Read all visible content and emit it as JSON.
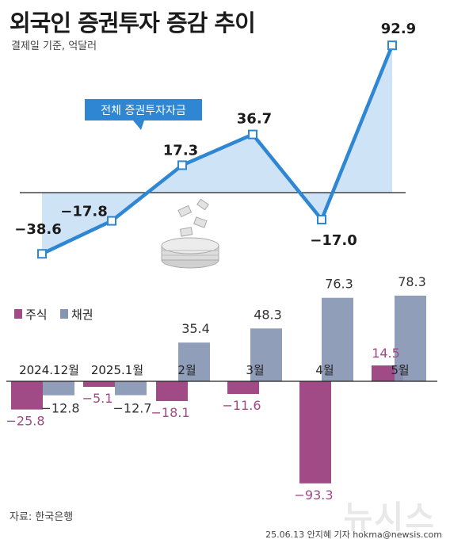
{
  "title": "외국인 증권투자 증감 추이",
  "subtitle": "결제일 기준, 억달러",
  "source": "자료: 한국은행",
  "credit": "25.06.13 안지혜 기자 hokma@newsis.com",
  "watermark": "뉴시스",
  "colors": {
    "total_line": "#2f86d3",
    "total_fill": "#cfe3f6",
    "stocks": "#a04a86",
    "bonds": "#8594b3"
  },
  "chart_data": [
    {
      "type": "line",
      "categories": [
        "2024.12월",
        "2025.1월",
        "2월",
        "3월",
        "4월",
        "5월"
      ],
      "series": [
        {
          "name": "전체 증권투자자금",
          "values": [
            -38.6,
            -17.8,
            17.3,
            36.7,
            -17.0,
            92.9
          ]
        }
      ],
      "value_labels": [
        "−38.6",
        "−17.8",
        "17.3",
        "36.7",
        "−17.0",
        "92.9"
      ],
      "grid": false
    },
    {
      "type": "bar",
      "categories": [
        "2024.12월",
        "2025.1월",
        "2월",
        "3월",
        "4월",
        "5월"
      ],
      "series": [
        {
          "name": "주식",
          "values": [
            -25.8,
            -5.1,
            -18.1,
            -11.6,
            -93.3,
            14.5
          ],
          "labels": [
            "−25.8",
            "−5.1",
            "−18.1",
            "−11.6",
            "−93.3",
            "14.5"
          ]
        },
        {
          "name": "채권",
          "values": [
            -12.8,
            -12.7,
            35.4,
            48.3,
            76.3,
            78.3
          ],
          "labels": [
            "−12.8",
            "−12.7",
            "35.4",
            "48.3",
            "76.3",
            "78.3"
          ]
        }
      ],
      "legend": "left",
      "grid": false
    }
  ]
}
